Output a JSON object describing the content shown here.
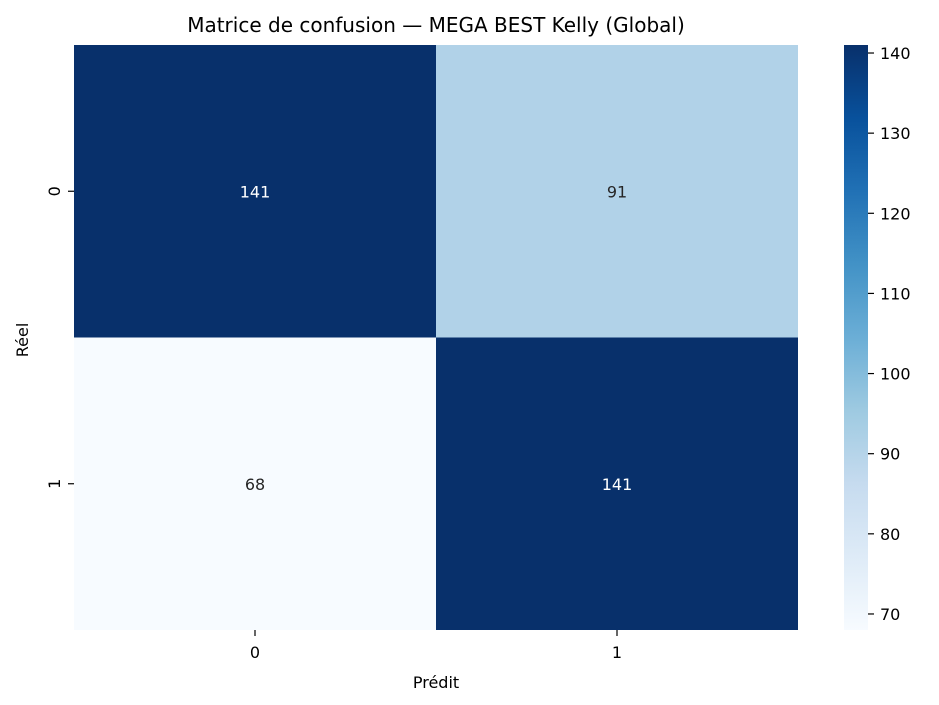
{
  "chart_data": {
    "type": "heatmap",
    "title": "Matrice de confusion — MEGA BEST Kelly (Global)",
    "xlabel": "Prédit",
    "ylabel": "Réel",
    "x_categories": [
      "0",
      "1"
    ],
    "y_categories": [
      "0",
      "1"
    ],
    "values": [
      [
        141,
        91
      ],
      [
        68,
        141
      ]
    ],
    "colormap": "Blues",
    "colorbar": {
      "range": [
        68,
        141
      ],
      "ticks": [
        70,
        80,
        90,
        100,
        110,
        120,
        130,
        140
      ]
    }
  }
}
